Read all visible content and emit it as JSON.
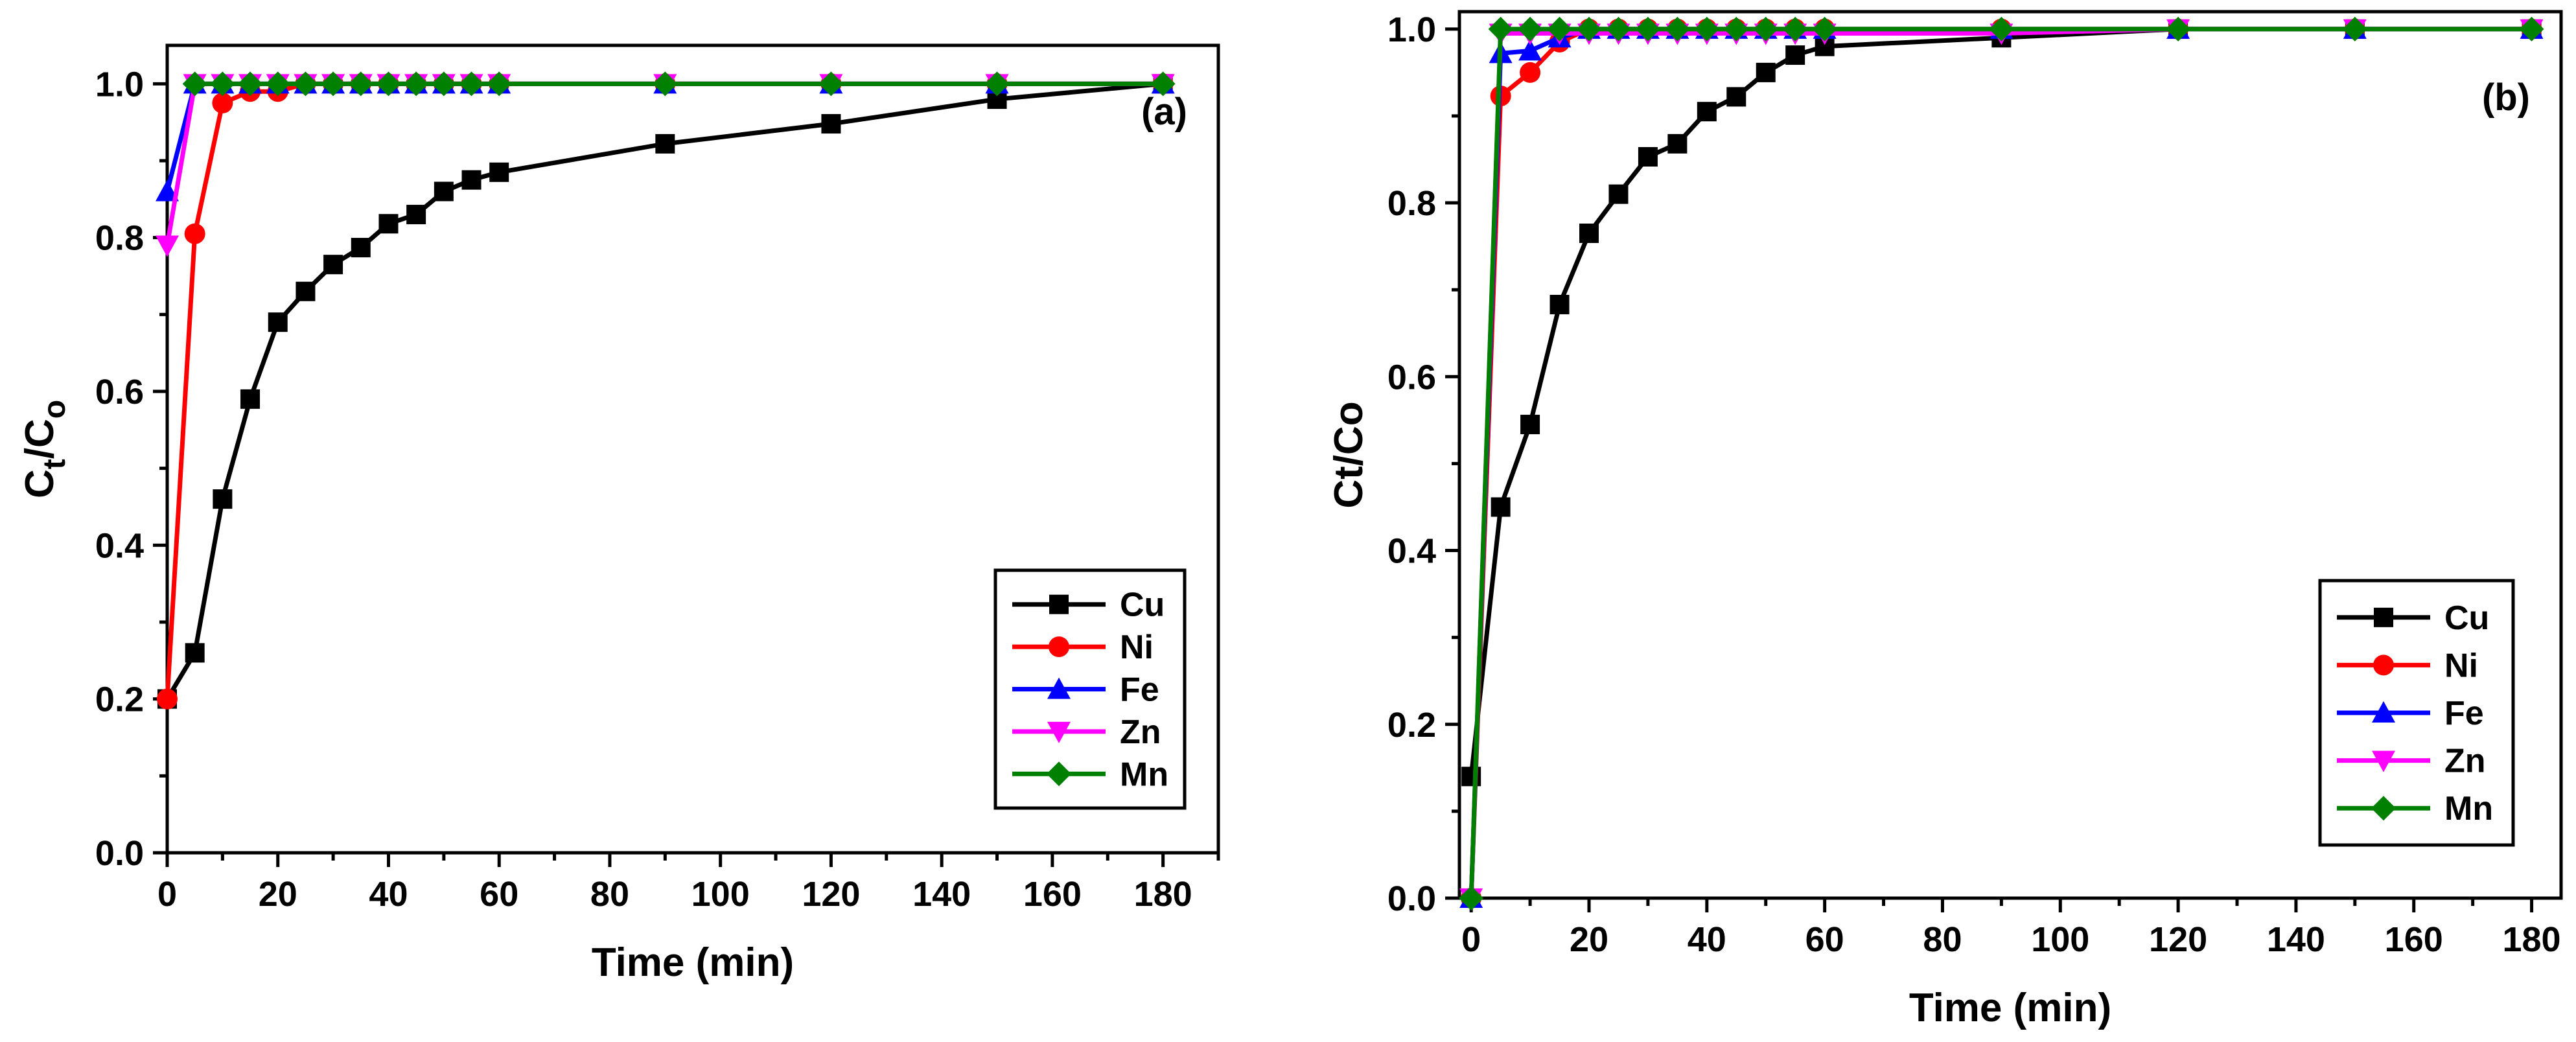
{
  "chart_data": [
    {
      "type": "line",
      "panel_label": "(a)",
      "xlabel": "Time (min)",
      "ylabel": {
        "base": "C",
        "sub": "t",
        "sep": "/C",
        "sub2": "o"
      },
      "xlim": [
        0,
        190
      ],
      "ylim": [
        0,
        1.05
      ],
      "xticks": [
        0,
        20,
        40,
        60,
        80,
        100,
        120,
        140,
        160,
        180
      ],
      "xtick_labels": [
        "0",
        "20",
        "40",
        "60",
        "80",
        "100",
        "120",
        "140",
        "160",
        "180"
      ],
      "yticks": [
        0.0,
        0.2,
        0.4,
        0.6,
        0.8,
        1.0
      ],
      "ytick_labels": [
        "0.0",
        "0.2",
        "0.4",
        "0.6",
        "0.8",
        "1.0"
      ],
      "legend_position": "bottom-right",
      "series": [
        {
          "name": "Cu",
          "color": "#000000",
          "marker": "square",
          "x": [
            0,
            5,
            10,
            15,
            20,
            25,
            30,
            35,
            40,
            45,
            50,
            55,
            60,
            90,
            120,
            150,
            180
          ],
          "y": [
            0.2,
            0.26,
            0.46,
            0.59,
            0.69,
            0.73,
            0.765,
            0.787,
            0.818,
            0.83,
            0.86,
            0.875,
            0.885,
            0.922,
            0.948,
            0.98,
            1.0
          ]
        },
        {
          "name": "Ni",
          "color": "#ff0000",
          "marker": "circle",
          "x": [
            0,
            5,
            10,
            15,
            20,
            25,
            30,
            35,
            40,
            45,
            50,
            55,
            60,
            90,
            120,
            150,
            180
          ],
          "y": [
            0.2,
            0.805,
            0.975,
            0.99,
            0.99,
            1.0,
            1.0,
            1.0,
            1.0,
            1.0,
            1.0,
            1.0,
            1.0,
            1.0,
            1.0,
            1.0,
            1.0
          ]
        },
        {
          "name": "Fe",
          "color": "#0000ff",
          "marker": "triangle-up",
          "x": [
            0,
            5,
            10,
            15,
            20,
            25,
            30,
            35,
            40,
            45,
            50,
            55,
            60,
            90,
            120,
            150,
            180
          ],
          "y": [
            0.86,
            1.0,
            1.0,
            1.0,
            1.0,
            1.0,
            1.0,
            1.0,
            1.0,
            1.0,
            1.0,
            1.0,
            1.0,
            1.0,
            1.0,
            1.0,
            1.0
          ]
        },
        {
          "name": "Zn",
          "color": "#ff00ff",
          "marker": "triangle-down",
          "x": [
            0,
            5,
            10,
            15,
            20,
            25,
            30,
            35,
            40,
            45,
            50,
            55,
            60,
            90,
            120,
            150,
            180
          ],
          "y": [
            0.79,
            1.0,
            1.0,
            1.0,
            1.0,
            1.0,
            1.0,
            1.0,
            1.0,
            1.0,
            1.0,
            1.0,
            1.0,
            1.0,
            1.0,
            1.0,
            1.0
          ]
        },
        {
          "name": "Mn",
          "color": "#008000",
          "marker": "diamond",
          "x": [
            5,
            10,
            15,
            20,
            25,
            30,
            35,
            40,
            45,
            50,
            55,
            60,
            90,
            120,
            150,
            180
          ],
          "y": [
            1.0,
            1.0,
            1.0,
            1.0,
            1.0,
            1.0,
            1.0,
            1.0,
            1.0,
            1.0,
            1.0,
            1.0,
            1.0,
            1.0,
            1.0,
            1.0
          ]
        }
      ]
    },
    {
      "type": "line",
      "panel_label": "(b)",
      "xlabel": "Time (min)",
      "ylabel": {
        "base": "Ct/Co"
      },
      "xlim": [
        -2,
        185
      ],
      "ylim": [
        0,
        1.02
      ],
      "xticks": [
        0,
        20,
        40,
        60,
        80,
        100,
        120,
        140,
        160,
        180
      ],
      "xtick_labels": [
        "0",
        "20",
        "40",
        "60",
        "80",
        "100",
        "120",
        "140",
        "160",
        "180"
      ],
      "yticks": [
        0.0,
        0.2,
        0.4,
        0.6,
        0.8,
        1.0
      ],
      "ytick_labels": [
        "0.0",
        "0.2",
        "0.4",
        "0.6",
        "0.8",
        "1.0"
      ],
      "legend_position": "bottom-right",
      "series": [
        {
          "name": "Cu",
          "color": "#000000",
          "marker": "square",
          "x": [
            0,
            5,
            10,
            15,
            20,
            25,
            30,
            35,
            40,
            45,
            50,
            55,
            60,
            90,
            120,
            150,
            180
          ],
          "y": [
            0.14,
            0.45,
            0.545,
            0.683,
            0.765,
            0.81,
            0.853,
            0.868,
            0.905,
            0.922,
            0.95,
            0.97,
            0.98,
            0.99,
            1.0,
            1.0,
            1.0
          ]
        },
        {
          "name": "Ni",
          "color": "#ff0000",
          "marker": "circle",
          "x": [
            0,
            5,
            10,
            15,
            20,
            25,
            30,
            35,
            40,
            45,
            50,
            55,
            60,
            90,
            120,
            150,
            180
          ],
          "y": [
            0.0,
            0.923,
            0.95,
            0.985,
            1.0,
            1.0,
            1.0,
            1.0,
            1.0,
            1.0,
            1.0,
            1.0,
            1.0,
            1.0,
            1.0,
            1.0,
            1.0
          ]
        },
        {
          "name": "Fe",
          "color": "#0000ff",
          "marker": "triangle-up",
          "x": [
            0,
            5,
            10,
            15,
            20,
            25,
            30,
            35,
            40,
            45,
            50,
            55,
            60,
            90,
            120,
            150,
            180
          ],
          "y": [
            0.0,
            0.972,
            0.975,
            0.99,
            1.0,
            1.0,
            1.0,
            1.0,
            1.0,
            1.0,
            1.0,
            1.0,
            1.0,
            1.0,
            1.0,
            1.0,
            1.0
          ]
        },
        {
          "name": "Zn",
          "color": "#ff00ff",
          "marker": "triangle-down",
          "x": [
            0,
            5,
            10,
            15,
            20,
            25,
            30,
            35,
            40,
            45,
            50,
            55,
            60,
            90,
            120,
            150,
            180
          ],
          "y": [
            0.0,
            0.995,
            0.995,
            0.995,
            0.995,
            0.995,
            0.995,
            0.995,
            0.995,
            0.995,
            0.995,
            0.995,
            0.995,
            0.995,
            1.0,
            1.0,
            1.0
          ]
        },
        {
          "name": "Mn",
          "color": "#008000",
          "marker": "diamond",
          "x": [
            0,
            5,
            10,
            15,
            20,
            25,
            30,
            35,
            40,
            45,
            50,
            55,
            60,
            90,
            120,
            150,
            180
          ],
          "y": [
            0.0,
            1.0,
            1.0,
            1.0,
            1.0,
            1.0,
            1.0,
            1.0,
            1.0,
            1.0,
            1.0,
            1.0,
            1.0,
            1.0,
            1.0,
            1.0,
            1.0
          ]
        }
      ]
    }
  ]
}
